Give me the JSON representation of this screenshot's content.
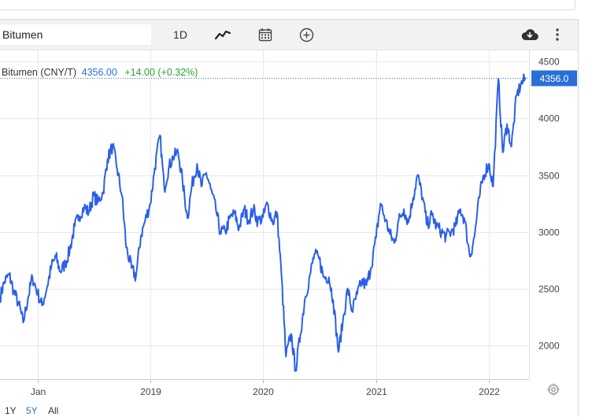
{
  "toolbar": {
    "symbol_value": "Bitumen",
    "interval_label": "1D",
    "line_icon": "line-chart-icon",
    "calendar_icon": "calendar-icon",
    "compare_icon": "plus-circle-icon",
    "download_icon": "cloud-download-icon",
    "more_icon": "more-vertical-icon"
  },
  "legend": {
    "name": "Bitumen (CNY/T)",
    "last": "4356.00",
    "change": "+14.00 (+0.32%)"
  },
  "price_badge": "4356.0",
  "range_buttons": [
    {
      "label": "1Y",
      "active": false
    },
    {
      "label": "5Y",
      "active": true
    },
    {
      "label": "All",
      "active": false
    }
  ],
  "settings_icon": "gear-icon",
  "colors": {
    "line": "#2a5fe8",
    "accent": "#2a6fd6",
    "positive": "#2ca02c",
    "grid": "#e8e8e8"
  },
  "chart_data": {
    "type": "line",
    "ylim": [
      1700,
      4600
    ],
    "xlim": [
      "2017-09",
      "2022-05"
    ],
    "yticks": [
      2000,
      2500,
      3000,
      3500,
      4000,
      4500
    ],
    "xticks": [
      {
        "label": "Jan",
        "date": "2018-01"
      },
      {
        "label": "2019",
        "date": "2019-01"
      },
      {
        "label": "2020",
        "date": "2020-01"
      },
      {
        "label": "2021",
        "date": "2021-01"
      },
      {
        "label": "2022",
        "date": "2022-01"
      }
    ],
    "last_value": 4356.0,
    "grid": true,
    "series": [
      {
        "points": [
          [
            "2017-09",
            2420
          ],
          [
            "2017-09-15",
            2560
          ],
          [
            "2017-10",
            2620
          ],
          [
            "2017-10-15",
            2480
          ],
          [
            "2017-11",
            2360
          ],
          [
            "2017-11-15",
            2200
          ],
          [
            "2017-12",
            2420
          ],
          [
            "2017-12-15",
            2600
          ],
          [
            "2018-01",
            2460
          ],
          [
            "2018-01-15",
            2350
          ],
          [
            "2018-02",
            2520
          ],
          [
            "2018-02-15",
            2700
          ],
          [
            "2018-03",
            2780
          ],
          [
            "2018-03-15",
            2650
          ],
          [
            "2018-04",
            2720
          ],
          [
            "2018-04-15",
            2840
          ],
          [
            "2018-05",
            3050
          ],
          [
            "2018-05-15",
            3140
          ],
          [
            "2018-06",
            3220
          ],
          [
            "2018-06-15",
            3170
          ],
          [
            "2018-07",
            3320
          ],
          [
            "2018-07-15",
            3260
          ],
          [
            "2018-08",
            3350
          ],
          [
            "2018-08-15",
            3640
          ],
          [
            "2018-09",
            3760
          ],
          [
            "2018-09-15",
            3560
          ],
          [
            "2018-10",
            3320
          ],
          [
            "2018-10-15",
            2860
          ],
          [
            "2018-11",
            2680
          ],
          [
            "2018-11-15",
            2600
          ],
          [
            "2018-12",
            2960
          ],
          [
            "2018-12-15",
            3100
          ],
          [
            "2019-01",
            3250
          ],
          [
            "2019-01-15",
            3560
          ],
          [
            "2019-02",
            3850
          ],
          [
            "2019-02-15",
            3380
          ],
          [
            "2019-03",
            3560
          ],
          [
            "2019-03-15",
            3660
          ],
          [
            "2019-04",
            3700
          ],
          [
            "2019-04-15",
            3450
          ],
          [
            "2019-05",
            3120
          ],
          [
            "2019-05-15",
            3400
          ],
          [
            "2019-06",
            3600
          ],
          [
            "2019-06-15",
            3400
          ],
          [
            "2019-07",
            3520
          ],
          [
            "2019-07-15",
            3380
          ],
          [
            "2019-08",
            3200
          ],
          [
            "2019-08-15",
            3000
          ],
          [
            "2019-09",
            3000
          ],
          [
            "2019-09-15",
            3120
          ],
          [
            "2019-10",
            3160
          ],
          [
            "2019-10-15",
            3030
          ],
          [
            "2019-11",
            3200
          ],
          [
            "2019-11-15",
            3100
          ],
          [
            "2019-12",
            3200
          ],
          [
            "2019-12-15",
            3090
          ],
          [
            "2020-01",
            3130
          ],
          [
            "2020-01-15",
            3250
          ],
          [
            "2020-02",
            3080
          ],
          [
            "2020-02-15",
            3170
          ],
          [
            "2020-03",
            2600
          ],
          [
            "2020-03-15",
            1900
          ],
          [
            "2020-04",
            2100
          ],
          [
            "2020-04-15",
            1780
          ],
          [
            "2020-05",
            2100
          ],
          [
            "2020-05-15",
            2400
          ],
          [
            "2020-06",
            2620
          ],
          [
            "2020-06-15",
            2800
          ],
          [
            "2020-07",
            2760
          ],
          [
            "2020-07-15",
            2600
          ],
          [
            "2020-08",
            2600
          ],
          [
            "2020-08-15",
            2400
          ],
          [
            "2020-09",
            1940
          ],
          [
            "2020-09-15",
            2200
          ],
          [
            "2020-10",
            2500
          ],
          [
            "2020-10-15",
            2300
          ],
          [
            "2020-11",
            2450
          ],
          [
            "2020-11-15",
            2560
          ],
          [
            "2020-12",
            2530
          ],
          [
            "2020-12-15",
            2680
          ],
          [
            "2021-01",
            2950
          ],
          [
            "2021-01-15",
            3250
          ],
          [
            "2021-02",
            3100
          ],
          [
            "2021-02-15",
            2980
          ],
          [
            "2021-03",
            2900
          ],
          [
            "2021-03-15",
            3100
          ],
          [
            "2021-04",
            3200
          ],
          [
            "2021-04-15",
            3080
          ],
          [
            "2021-05",
            3300
          ],
          [
            "2021-05-15",
            3500
          ],
          [
            "2021-06",
            3300
          ],
          [
            "2021-06-15",
            3060
          ],
          [
            "2021-07",
            3150
          ],
          [
            "2021-07-15",
            3050
          ],
          [
            "2021-08",
            3000
          ],
          [
            "2021-08-15",
            2960
          ],
          [
            "2021-09",
            3000
          ],
          [
            "2021-09-15",
            3050
          ],
          [
            "2021-10",
            3200
          ],
          [
            "2021-10-15",
            3100
          ],
          [
            "2021-11",
            2780
          ],
          [
            "2021-11-15",
            2950
          ],
          [
            "2021-12",
            3300
          ],
          [
            "2021-12-15",
            3500
          ],
          [
            "2022-01",
            3600
          ],
          [
            "2022-01-15",
            3400
          ],
          [
            "2022-02",
            4350
          ],
          [
            "2022-02-15",
            3700
          ],
          [
            "2022-03",
            3950
          ],
          [
            "2022-03-15",
            3750
          ],
          [
            "2022-04",
            4200
          ],
          [
            "2022-04-15",
            4300
          ],
          [
            "2022-05",
            4356
          ]
        ]
      }
    ]
  }
}
